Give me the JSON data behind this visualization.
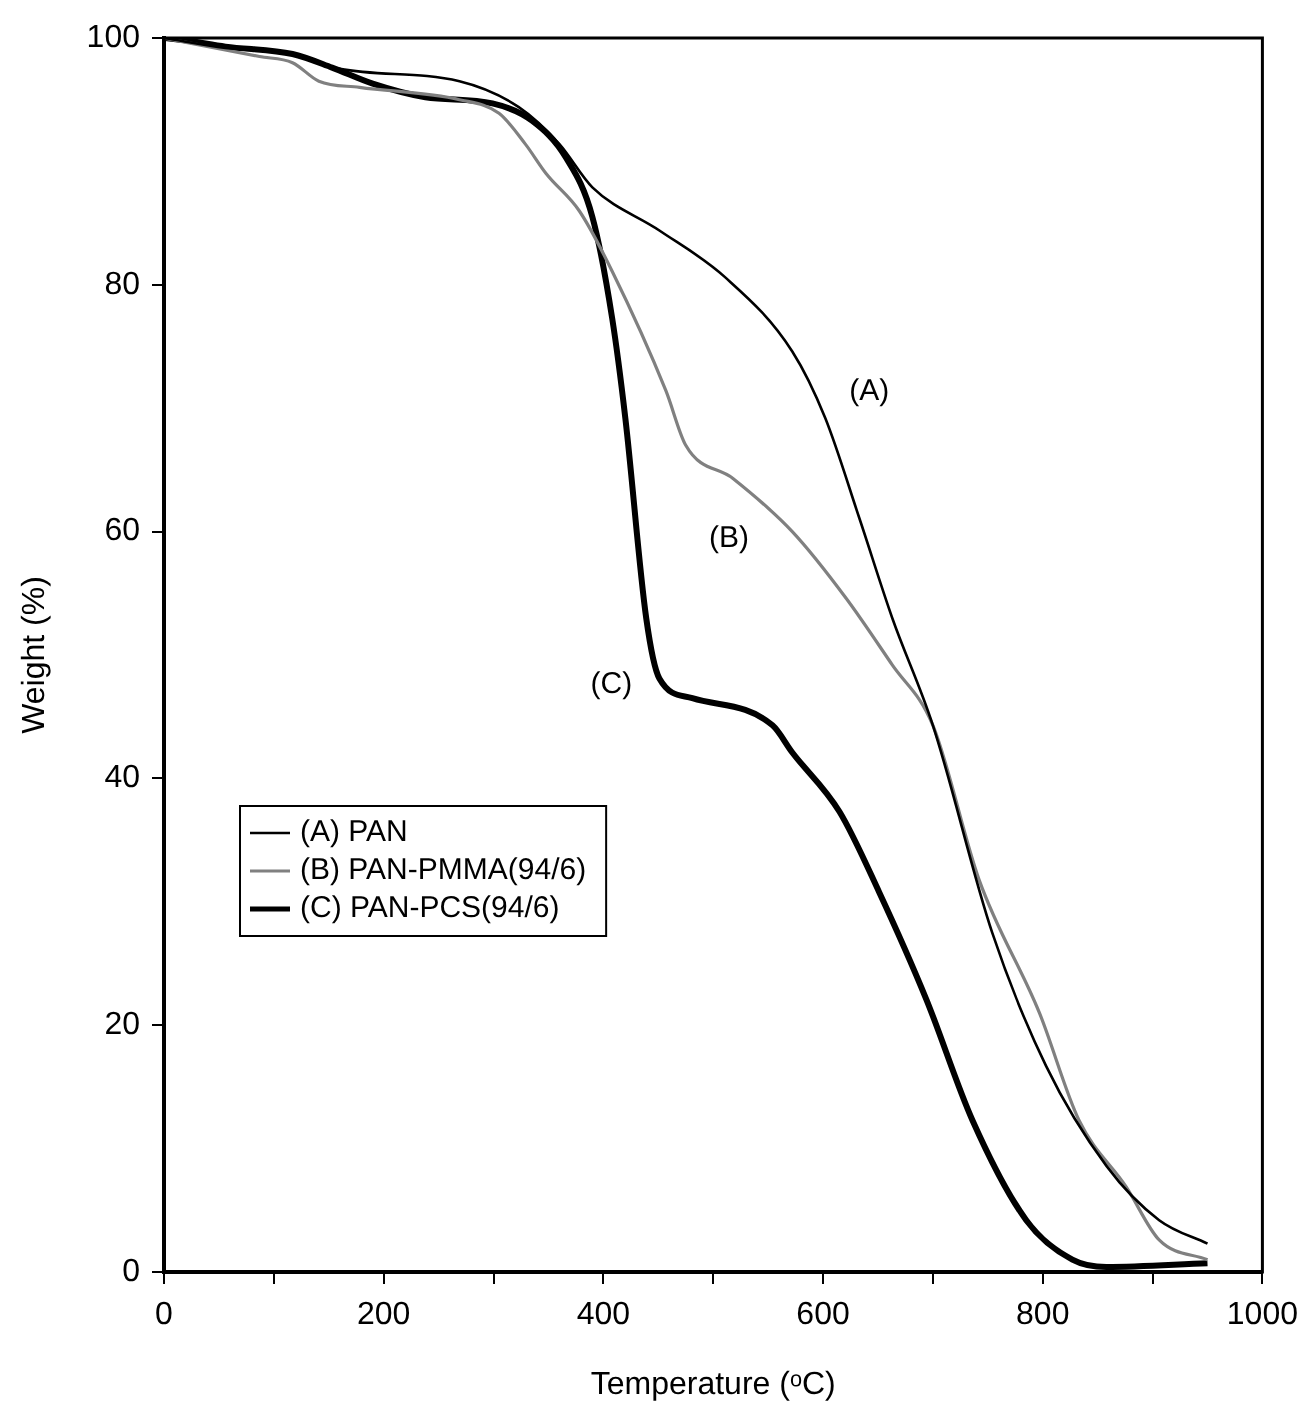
{
  "chart_data": {
    "type": "line",
    "xlabel": "Temperature (ᵒC)",
    "ylabel": "Weight (%)",
    "xlim": [
      0,
      1000
    ],
    "ylim": [
      0,
      100
    ],
    "xticks": [
      0,
      {
        "value": 100,
        "label": null
      },
      200,
      {
        "value": 300,
        "label": null
      },
      400,
      {
        "value": 500,
        "label": null
      },
      600,
      {
        "value": 700,
        "label": null
      },
      800,
      {
        "value": 900,
        "label": null
      },
      1000
    ],
    "yticks": [
      0,
      20,
      40,
      60,
      80,
      100
    ],
    "grid": false,
    "legend": "bottom left",
    "marker": "none",
    "line_style": "solid",
    "series": [
      {
        "name": "(A) PAN",
        "color": "#000000",
        "x": [
          0,
          56,
          117,
          160,
          269,
          323,
          360,
          390,
          451,
          511,
          572,
          602,
          633,
          663,
          700,
          754,
          803,
          858,
          906,
          950
        ],
        "values": [
          100,
          99.2,
          98.7,
          97.5,
          96.5,
          94.4,
          91.4,
          87.9,
          84.4,
          80.6,
          74.6,
          69.2,
          61.1,
          53,
          44.3,
          27.5,
          16.7,
          8.6,
          4.2,
          2.3
        ]
      },
      {
        "name": "(B) PAN-PMMA(94/6)",
        "color": "#808080",
        "x": [
          0,
          87,
          117,
          141,
          178,
          269,
          305,
          329,
          348,
          378,
          408,
          457,
          475,
          518,
          572,
          621,
          663,
          700,
          742,
          797,
          833,
          876,
          906,
          950
        ],
        "values": [
          100,
          98.5,
          98,
          96.5,
          96,
          95,
          93.9,
          91.4,
          89,
          86,
          81.1,
          71.4,
          67,
          64.3,
          60,
          54.6,
          49.2,
          44.3,
          31.8,
          21,
          12.3,
          6.9,
          2.6,
          1
        ]
      },
      {
        "name": "(C) PAN-PCS(94/6)",
        "color": "#000000",
        "x": [
          0,
          20,
          56,
          117,
          153,
          190,
          238,
          299,
          335,
          366,
          390,
          408,
          420,
          439,
          451,
          481,
          554,
          572,
          615,
          651,
          694,
          736,
          785,
          827,
          858,
          950
        ],
        "values": [
          100,
          99.8,
          99.3,
          98.7,
          97.6,
          96.3,
          95.2,
          94.7,
          93.3,
          90.3,
          85.5,
          77.3,
          69.2,
          53,
          48.1,
          46.5,
          44.3,
          42.1,
          37.3,
          30.8,
          22.1,
          12.3,
          4.2,
          1,
          0.4,
          0.7
        ]
      }
    ],
    "annotations": [
      {
        "text": "(A)",
        "x": 602,
        "y": 69.2
      },
      {
        "text": "(B)",
        "x": 518,
        "y": 64.3
      },
      {
        "text": "(C)",
        "x": 451,
        "y": 48.1
      }
    ]
  }
}
